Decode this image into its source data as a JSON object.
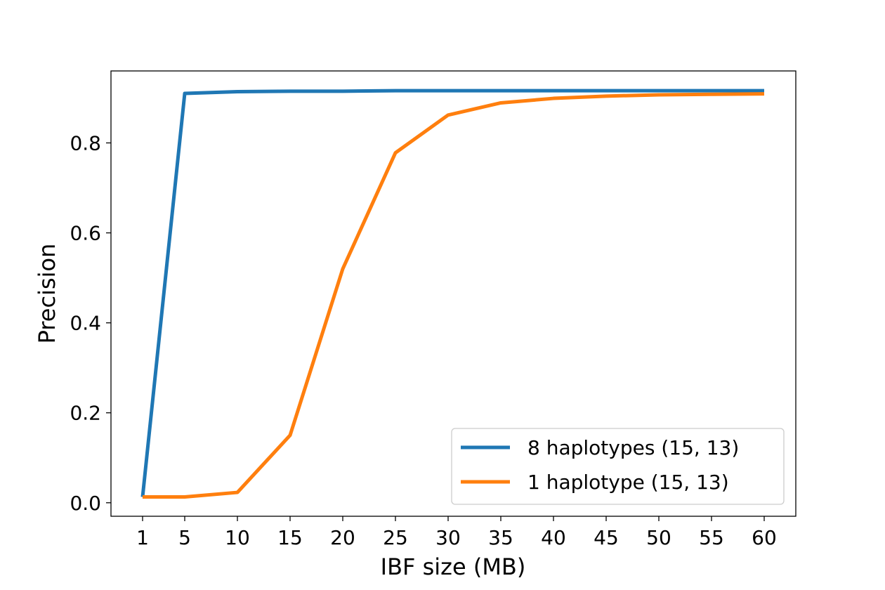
{
  "chart_data": {
    "type": "line",
    "title": "",
    "xlabel": "IBF size (MB)",
    "ylabel": "Precision",
    "x": [
      1,
      5,
      10,
      15,
      20,
      25,
      30,
      35,
      40,
      45,
      50,
      55,
      60
    ],
    "xticks": [
      1,
      5,
      10,
      15,
      20,
      25,
      30,
      35,
      40,
      45,
      50,
      55,
      60
    ],
    "yticks": [
      0.0,
      0.2,
      0.4,
      0.6,
      0.8
    ],
    "ytick_labels": [
      "0.0",
      "0.2",
      "0.4",
      "0.6",
      "0.8"
    ],
    "xlim": [
      -2,
      63
    ],
    "ylim": [
      -0.03,
      0.96
    ],
    "grid": false,
    "legend_position": "lower-right",
    "series": [
      {
        "name": "8 haplotypes (15, 13)",
        "color": "#1f77b4",
        "values": [
          0.013,
          0.91,
          0.914,
          0.915,
          0.915,
          0.916,
          0.916,
          0.916,
          0.916,
          0.916,
          0.916,
          0.916,
          0.916
        ]
      },
      {
        "name": "1 haplotype (15, 13)",
        "color": "#ff7f0e",
        "values": [
          0.013,
          0.013,
          0.023,
          0.15,
          0.52,
          0.778,
          0.862,
          0.889,
          0.899,
          0.904,
          0.907,
          0.908,
          0.909
        ]
      }
    ]
  }
}
